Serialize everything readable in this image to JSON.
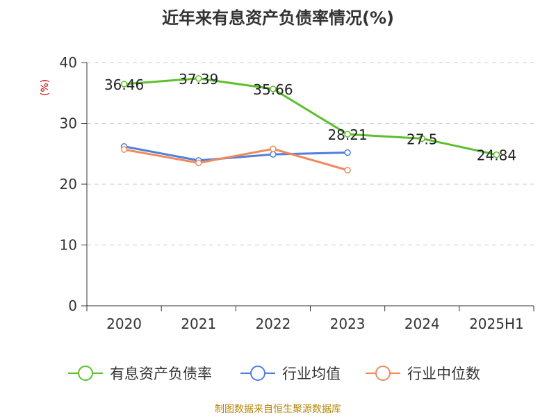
{
  "title": "近年来有息资产负债率情况(%)",
  "source": "制图数据来自恒生聚源数据库",
  "chart_data": {
    "type": "line",
    "title": "近年来有息资产负债率情况(%)",
    "ylabel": "(%)",
    "xlabel": "",
    "categories": [
      "2020",
      "2021",
      "2022",
      "2023",
      "2024",
      "2025H1"
    ],
    "ylim": [
      0,
      40
    ],
    "yticks": [
      0,
      10,
      20,
      30,
      40
    ],
    "grid": true,
    "legend_position": "bottom",
    "series": [
      {
        "name": "有息资产负债率",
        "color": "#5dbf2d",
        "values": [
          36.46,
          37.39,
          35.66,
          28.21,
          27.5,
          24.84
        ],
        "labels": [
          "36.46",
          "37.39",
          "35.66",
          "28.21",
          "27.5",
          "24.84"
        ]
      },
      {
        "name": "行业均值",
        "color": "#4f7fdc",
        "values": [
          26.2,
          23.9,
          24.9,
          25.2,
          null,
          null
        ]
      },
      {
        "name": "行业中位数",
        "color": "#f08a5d",
        "values": [
          25.7,
          23.5,
          25.8,
          22.3,
          null,
          null
        ]
      }
    ]
  }
}
